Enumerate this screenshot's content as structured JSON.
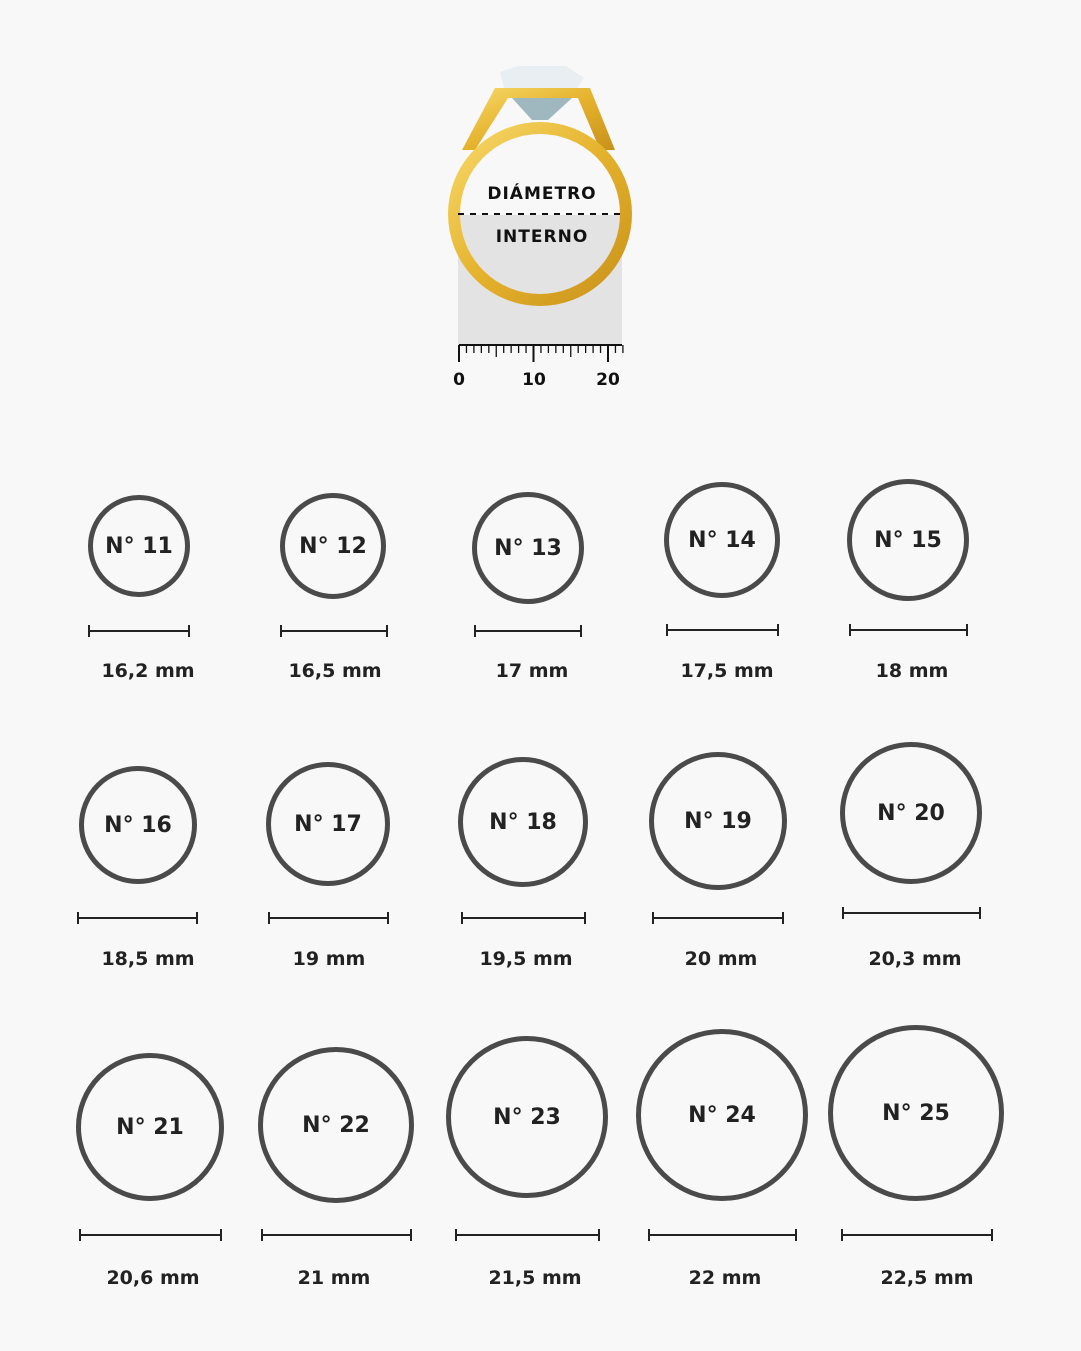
{
  "illustration": {
    "label_top": "DIÁMETRO",
    "label_bottom": "INTERNO",
    "ruler_labels": [
      "0",
      "10",
      "20"
    ],
    "ring_color": "#e8b830",
    "gem_color": "#cfe0e6"
  },
  "sizes": [
    {
      "number": "N° 11",
      "diameter": "16,2 mm"
    },
    {
      "number": "N° 12",
      "diameter": "16,5 mm"
    },
    {
      "number": "N° 13",
      "diameter": "17 mm"
    },
    {
      "number": "N° 14",
      "diameter": "17,5 mm"
    },
    {
      "number": "N° 15",
      "diameter": "18 mm"
    },
    {
      "number": "N° 16",
      "diameter": "18,5 mm"
    },
    {
      "number": "N° 17",
      "diameter": "19 mm"
    },
    {
      "number": "N° 18",
      "diameter": "19,5 mm"
    },
    {
      "number": "N° 19",
      "diameter": "20 mm"
    },
    {
      "number": "N° 20",
      "diameter": "20,3 mm"
    },
    {
      "number": "N° 21",
      "diameter": "20,6 mm"
    },
    {
      "number": "N° 22",
      "diameter": "21 mm"
    },
    {
      "number": "N° 23",
      "diameter": "21,5 mm"
    },
    {
      "number": "N° 24",
      "diameter": "22 mm"
    },
    {
      "number": "N° 25",
      "diameter": "22,5 mm"
    }
  ]
}
